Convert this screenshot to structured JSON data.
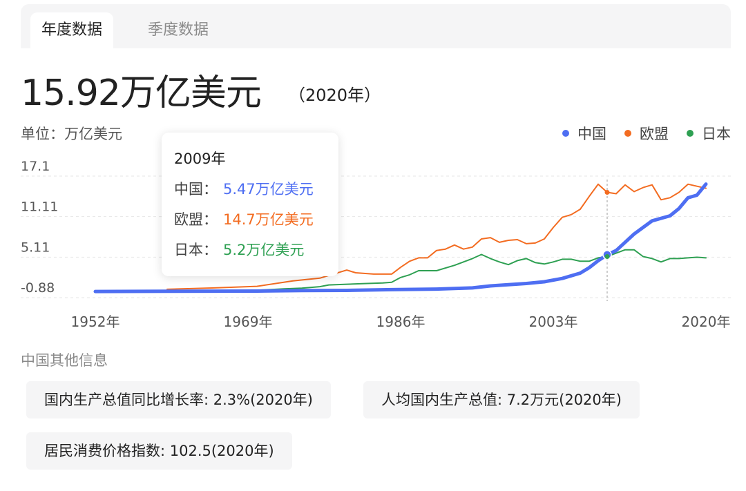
{
  "tabs": [
    {
      "label": "年度数据",
      "active": true
    },
    {
      "label": "季度数据",
      "active": false
    }
  ],
  "headline": {
    "value": "15.92万亿美元",
    "year_note": "（2020年）"
  },
  "unit_label": "单位：万亿美元",
  "legend": [
    {
      "name": "中国",
      "color": "#4e6ef2"
    },
    {
      "name": "欧盟",
      "color": "#f36c21"
    },
    {
      "name": "日本",
      "color": "#2ea052"
    }
  ],
  "tooltip": {
    "year": "2009年",
    "rows": [
      {
        "label": "中国：",
        "value": "5.47万亿美元",
        "color": "#4e6ef2"
      },
      {
        "label": "欧盟：",
        "value": "14.7万亿美元",
        "color": "#f36c21"
      },
      {
        "label": "日本：",
        "value": "5.2万亿美元",
        "color": "#2ea052"
      }
    ]
  },
  "chart_data": {
    "type": "line",
    "y_ticks": [
      "17.1",
      "11.11",
      "5.11",
      "-0.88"
    ],
    "ylim": [
      -0.88,
      17.1
    ],
    "x_ticks": [
      {
        "year": 1952,
        "label": "1952年"
      },
      {
        "year": 1969,
        "label": "1969年"
      },
      {
        "year": 1986,
        "label": "1986年"
      },
      {
        "year": 2003,
        "label": "2003年"
      },
      {
        "year": 2020,
        "label": "2020年"
      }
    ],
    "xlim": [
      1952,
      2021
    ],
    "hover_year": 2009,
    "series": [
      {
        "name": "中国",
        "color": "#4e6ef2",
        "width": 5,
        "points": [
          [
            1952,
            0.03
          ],
          [
            1960,
            0.06
          ],
          [
            1970,
            0.09
          ],
          [
            1975,
            0.16
          ],
          [
            1980,
            0.19
          ],
          [
            1985,
            0.31
          ],
          [
            1990,
            0.39
          ],
          [
            1994,
            0.56
          ],
          [
            1996,
            0.86
          ],
          [
            2000,
            1.21
          ],
          [
            2002,
            1.47
          ],
          [
            2004,
            1.96
          ],
          [
            2006,
            2.75
          ],
          [
            2007,
            3.55
          ],
          [
            2008,
            4.59
          ],
          [
            2009,
            5.47
          ],
          [
            2010,
            6.09
          ],
          [
            2012,
            8.53
          ],
          [
            2014,
            10.48
          ],
          [
            2016,
            11.23
          ],
          [
            2017,
            12.31
          ],
          [
            2018,
            13.89
          ],
          [
            2019,
            14.28
          ],
          [
            2020,
            15.92
          ]
        ]
      },
      {
        "name": "欧盟",
        "color": "#f36c21",
        "width": 2,
        "points": [
          [
            1960,
            0.36
          ],
          [
            1965,
            0.55
          ],
          [
            1970,
            0.8
          ],
          [
            1974,
            1.6
          ],
          [
            1977,
            2.0
          ],
          [
            1980,
            3.2
          ],
          [
            1981,
            2.8
          ],
          [
            1983,
            2.6
          ],
          [
            1985,
            2.6
          ],
          [
            1986,
            3.6
          ],
          [
            1987,
            4.5
          ],
          [
            1988,
            5.0
          ],
          [
            1989,
            5.0
          ],
          [
            1990,
            6.1
          ],
          [
            1991,
            6.3
          ],
          [
            1992,
            6.9
          ],
          [
            1993,
            6.3
          ],
          [
            1994,
            6.6
          ],
          [
            1995,
            7.8
          ],
          [
            1996,
            8.0
          ],
          [
            1997,
            7.3
          ],
          [
            1998,
            7.6
          ],
          [
            1999,
            7.7
          ],
          [
            2000,
            7.1
          ],
          [
            2001,
            7.2
          ],
          [
            2002,
            7.8
          ],
          [
            2003,
            9.5
          ],
          [
            2004,
            11.0
          ],
          [
            2005,
            11.4
          ],
          [
            2006,
            12.2
          ],
          [
            2007,
            14.1
          ],
          [
            2008,
            15.9
          ],
          [
            2009,
            14.7
          ],
          [
            2010,
            14.5
          ],
          [
            2011,
            15.8
          ],
          [
            2012,
            14.8
          ],
          [
            2013,
            15.4
          ],
          [
            2014,
            15.8
          ],
          [
            2015,
            13.6
          ],
          [
            2016,
            13.9
          ],
          [
            2017,
            14.7
          ],
          [
            2018,
            15.9
          ],
          [
            2019,
            15.6
          ],
          [
            2020,
            15.3
          ]
        ]
      },
      {
        "name": "日本",
        "color": "#2ea052",
        "width": 2,
        "points": [
          [
            1960,
            0.04
          ],
          [
            1966,
            0.12
          ],
          [
            1970,
            0.21
          ],
          [
            1973,
            0.43
          ],
          [
            1975,
            0.52
          ],
          [
            1977,
            0.74
          ],
          [
            1978,
            1.0
          ],
          [
            1980,
            1.1
          ],
          [
            1982,
            1.2
          ],
          [
            1984,
            1.3
          ],
          [
            1985,
            1.4
          ],
          [
            1986,
            2.1
          ],
          [
            1987,
            2.5
          ],
          [
            1988,
            3.1
          ],
          [
            1990,
            3.1
          ],
          [
            1992,
            3.9
          ],
          [
            1994,
            4.9
          ],
          [
            1995,
            5.5
          ],
          [
            1996,
            4.9
          ],
          [
            1997,
            4.4
          ],
          [
            1998,
            4.0
          ],
          [
            1999,
            4.6
          ],
          [
            2000,
            4.9
          ],
          [
            2001,
            4.3
          ],
          [
            2002,
            4.1
          ],
          [
            2003,
            4.4
          ],
          [
            2004,
            4.8
          ],
          [
            2005,
            4.8
          ],
          [
            2006,
            4.5
          ],
          [
            2007,
            4.5
          ],
          [
            2008,
            5.0
          ],
          [
            2009,
            5.2
          ],
          [
            2010,
            5.7
          ],
          [
            2011,
            6.2
          ],
          [
            2012,
            6.2
          ],
          [
            2013,
            5.2
          ],
          [
            2014,
            4.9
          ],
          [
            2015,
            4.4
          ],
          [
            2016,
            4.9
          ],
          [
            2017,
            4.9
          ],
          [
            2018,
            5.0
          ],
          [
            2019,
            5.1
          ],
          [
            2020,
            5.0
          ]
        ]
      }
    ]
  },
  "other_info": {
    "title": "中国其他信息",
    "items": [
      "国内生产总值同比增长率: 2.3%(2020年)",
      "人均国内生产总值: 7.2万元(2020年)",
      "居民消费价格指数: 102.5(2020年)"
    ]
  }
}
